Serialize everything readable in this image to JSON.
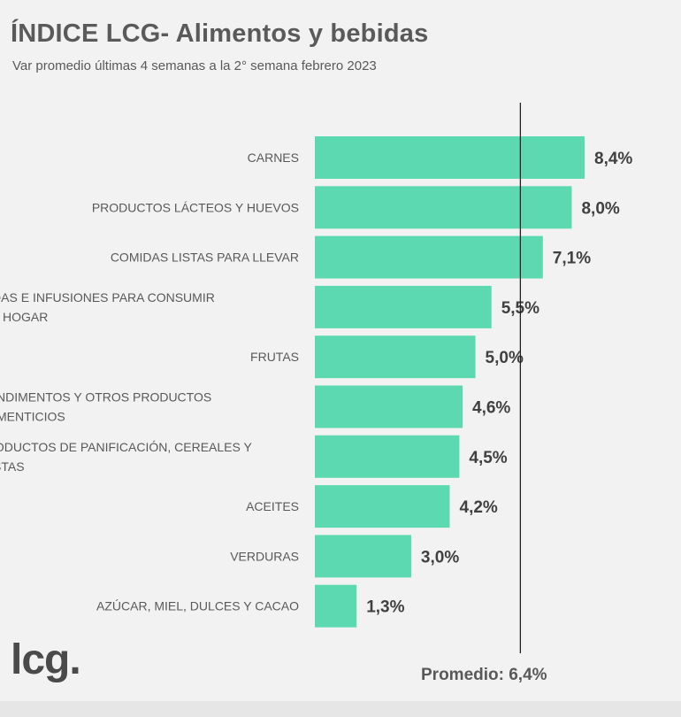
{
  "title": "ÍNDICE LCG- Alimentos y bebidas",
  "subtitle": "Var promedio últimas 4 semanas a la 2° semana febrero 2023",
  "logo": "lcg.",
  "average_label": "Promedio: 6,4%",
  "colors": {
    "bar": "#5cd9b0",
    "text": "#595959",
    "value_text": "#404040",
    "avg_line": "#222222"
  },
  "chart_data": {
    "type": "bar",
    "orientation": "horizontal",
    "title": "ÍNDICE LCG- Alimentos y bebidas",
    "subtitle": "Var promedio últimas 4 semanas a la 2° semana febrero 2023",
    "categories": [
      [
        "CARNES"
      ],
      [
        "PRODUCTOS LÁCTEOS Y HUEVOS"
      ],
      [
        "COMIDAS LISTAS PARA LLEVAR"
      ],
      [
        "BEBIDAS E INFUSIONES PARA CONSUMIR",
        "EN EL HOGAR"
      ],
      [
        "FRUTAS"
      ],
      [
        "CONDIMENTOS Y OTROS PRODUCTOS",
        "ALIMENTICIOS"
      ],
      [
        "PRODUCTOS DE PANIFICACIÓN, CEREALES Y",
        "PASTAS"
      ],
      [
        "ACEITES"
      ],
      [
        "VERDURAS"
      ],
      [
        "AZÚCAR, MIEL, DULCES Y CACAO"
      ]
    ],
    "values": [
      8.4,
      8.0,
      7.1,
      5.5,
      5.0,
      4.6,
      4.5,
      4.2,
      3.0,
      1.3
    ],
    "value_labels": [
      "8,4%",
      "8,0%",
      "7,1%",
      "5,5%",
      "5,0%",
      "4,6%",
      "4,5%",
      "4,2%",
      "3,0%",
      "1,3%"
    ],
    "average": 6.4,
    "xlim": [
      0,
      8.4
    ],
    "grid": false,
    "legend": "none"
  }
}
